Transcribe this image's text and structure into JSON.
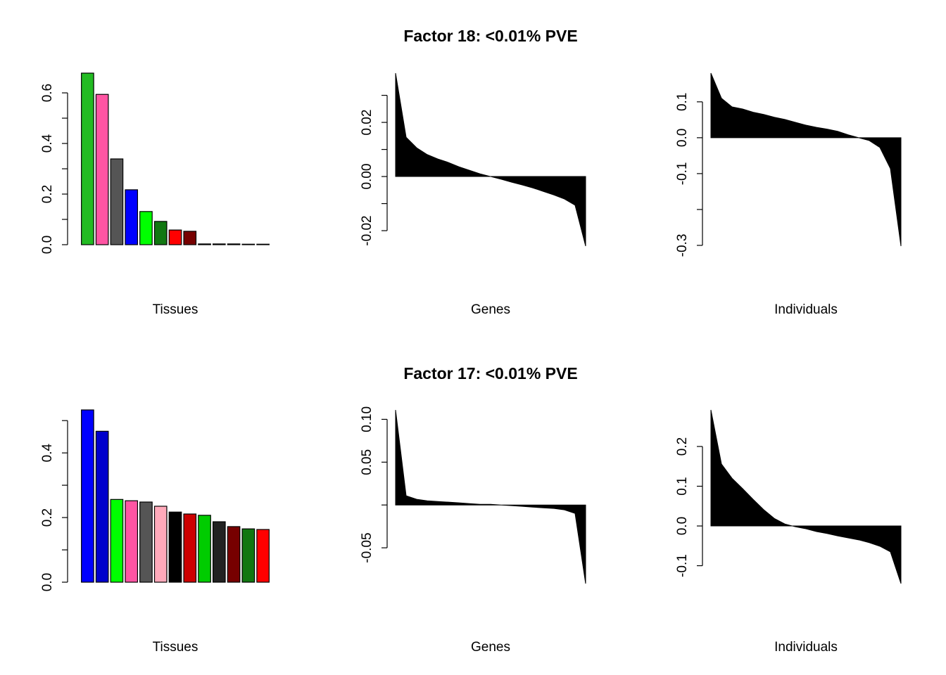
{
  "chart_data": [
    {
      "type": "bar",
      "x_label": "Tissues",
      "values": [
        0.678,
        0.594,
        0.339,
        0.217,
        0.131,
        0.092,
        0.058,
        0.053,
        0.003,
        0.003,
        0.003,
        0.002,
        0.002
      ],
      "colors": [
        "#22bb22",
        "#ff55a3",
        "#555555",
        "#0000ff",
        "#00ff00",
        "#117711",
        "#ff0000",
        "#770000",
        "#111111",
        "#111111",
        "#111111",
        "#111111",
        "#111111"
      ],
      "ylim": [
        0,
        0.678
      ],
      "yticks": [
        {
          "value": 0,
          "label": "0.0"
        },
        {
          "value": 0.2,
          "label": "0.2"
        },
        {
          "value": 0.4,
          "label": "0.4"
        },
        {
          "value": 0.6,
          "label": "0.6"
        }
      ],
      "yminor": [
        0.1,
        0.3,
        0.5
      ]
    },
    {
      "type": "area",
      "title": "Factor 18: <0.01% PVE",
      "x_label": "Genes",
      "color": "#000000",
      "values": [
        0.0382,
        0.0145,
        0.0106,
        0.0081,
        0.0065,
        0.0052,
        0.0036,
        0.0023,
        0.001,
        0,
        -0.001,
        -0.0021,
        -0.0031,
        -0.0042,
        -0.0055,
        -0.0068,
        -0.0083,
        -0.0106,
        -0.0257
      ],
      "ylim": [
        -0.0257,
        0.0382
      ],
      "yticks": [
        -0.02,
        {
          "value": 0,
          "label": "0.00"
        },
        0.02
      ],
      "yminor": [
        -0.01,
        0.01,
        0.03
      ]
    },
    {
      "type": "area",
      "x_label": "Individuals",
      "color": "#000000",
      "values": [
        0.18,
        0.11,
        0.086,
        0.08,
        0.071,
        0.065,
        0.057,
        0.051,
        0.043,
        0.035,
        0.029,
        0.024,
        0.018,
        0.008,
        0,
        -0.008,
        -0.027,
        -0.086,
        -0.302
      ],
      "ylim": [
        -0.302,
        0.18
      ],
      "yticks": [
        -0.3,
        -0.1,
        {
          "value": 0,
          "label": "0.0"
        },
        0.1
      ],
      "yminor": [
        -0.2
      ]
    },
    {
      "type": "bar",
      "x_label": "Tissues",
      "values": [
        0.533,
        0.467,
        0.256,
        0.252,
        0.248,
        0.235,
        0.217,
        0.211,
        0.207,
        0.187,
        0.172,
        0.165,
        0.163
      ],
      "colors": [
        "#0000ff",
        "#0000cc",
        "#00ff00",
        "#ff55a3",
        "#555555",
        "#ffaabb",
        "#000000",
        "#cc0000",
        "#00cc00",
        "#222222",
        "#770000",
        "#117711",
        "#ff0000"
      ],
      "ylim": [
        0,
        0.533
      ],
      "yticks": [
        {
          "value": 0,
          "label": "0.0"
        },
        0.2,
        0.4
      ],
      "yminor": [
        0.1,
        0.3,
        0.5
      ]
    },
    {
      "type": "area",
      "title": "Factor 17: <0.01% PVE",
      "x_label": "Genes",
      "color": "#000000",
      "values": [
        0.111,
        0.0107,
        0.0066,
        0.0049,
        0.0041,
        0.0033,
        0.0025,
        0.0016,
        0.0008,
        0.0008,
        0,
        -0.0008,
        -0.0016,
        -0.0025,
        -0.0033,
        -0.0041,
        -0.0057,
        -0.0098,
        -0.0918
      ],
      "ylim": [
        -0.0918,
        0.111
      ],
      "yticks": [
        -0.05,
        0.05,
        {
          "value": 0.1,
          "label": "0.10"
        }
      ],
      "yminor": [
        0
      ]
    },
    {
      "type": "area",
      "x_label": "Individuals",
      "color": "#000000",
      "values": [
        0.292,
        0.156,
        0.12,
        0.094,
        0.067,
        0.041,
        0.019,
        0.005,
        -0.002,
        -0.007,
        -0.014,
        -0.019,
        -0.025,
        -0.03,
        -0.035,
        -0.042,
        -0.051,
        -0.065,
        -0.145
      ],
      "ylim": [
        -0.145,
        0.292
      ],
      "yticks": [
        -0.1,
        {
          "value": 0,
          "label": "0.0"
        },
        0.1,
        0.2
      ],
      "yminor": []
    }
  ]
}
